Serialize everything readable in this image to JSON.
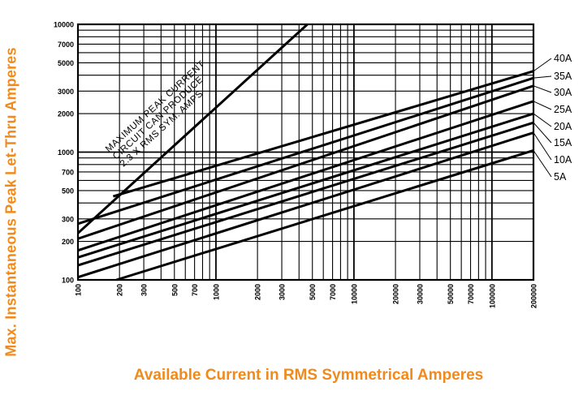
{
  "chart_data": {
    "type": "line",
    "title": "",
    "xlabel": "Available Current in RMS Symmetrical Amperes",
    "ylabel": "Max. Instantaneous Peak Let-Thru Amperes",
    "xscale": "log",
    "yscale": "log",
    "xlim": [
      100,
      200000
    ],
    "ylim": [
      100,
      10000
    ],
    "grid": true,
    "x_ticks": [
      {
        "v": 100,
        "label": "100"
      },
      {
        "v": 200,
        "label": "200"
      },
      {
        "v": 300,
        "label": "300"
      },
      {
        "v": 500,
        "label": "500"
      },
      {
        "v": 700,
        "label": "700"
      },
      {
        "v": 1000,
        "label": "1000"
      },
      {
        "v": 2000,
        "label": "2000"
      },
      {
        "v": 3000,
        "label": "3000"
      },
      {
        "v": 5000,
        "label": "5000"
      },
      {
        "v": 7000,
        "label": "7000"
      },
      {
        "v": 10000,
        "label": "10000"
      },
      {
        "v": 20000,
        "label": "20000"
      },
      {
        "v": 30000,
        "label": "30000"
      },
      {
        "v": 50000,
        "label": "50000"
      },
      {
        "v": 70000,
        "label": "70000"
      },
      {
        "v": 100000,
        "label": "100000"
      },
      {
        "v": 200000,
        "label": "200000"
      }
    ],
    "y_ticks": [
      {
        "v": 100,
        "label": "100"
      },
      {
        "v": 200,
        "label": "200"
      },
      {
        "v": 300,
        "label": "300"
      },
      {
        "v": 500,
        "label": "500"
      },
      {
        "v": 700,
        "label": "700"
      },
      {
        "v": 1000,
        "label": "1000"
      },
      {
        "v": 2000,
        "label": "2000"
      },
      {
        "v": 3000,
        "label": "3000"
      },
      {
        "v": 5000,
        "label": "5000"
      },
      {
        "v": 7000,
        "label": "7000"
      },
      {
        "v": 10000,
        "label": "10000"
      }
    ],
    "series": [
      {
        "name": "40A",
        "x": [
          180,
          200000
        ],
        "y": [
          450,
          4300
        ]
      },
      {
        "name": "35A",
        "x": [
          100,
          200000
        ],
        "y": [
          275,
          3800
        ]
      },
      {
        "name": "30A",
        "x": [
          100,
          200000
        ],
        "y": [
          210,
          3300
        ]
      },
      {
        "name": "25A",
        "x": [
          100,
          200000
        ],
        "y": [
          170,
          2500
        ]
      },
      {
        "name": "20A",
        "x": [
          100,
          200000
        ],
        "y": [
          150,
          2000
        ]
      },
      {
        "name": "15A",
        "x": [
          100,
          200000
        ],
        "y": [
          130,
          1700
        ]
      },
      {
        "name": "10A",
        "x": [
          100,
          200000
        ],
        "y": [
          105,
          1420
        ]
      },
      {
        "name": "5A",
        "x": [
          190,
          200000
        ],
        "y": [
          100,
          1030
        ]
      }
    ],
    "peak_line": {
      "x": [
        100,
        4600
      ],
      "y": [
        232,
        10000
      ]
    },
    "annotation": {
      "lines": [
        "MAXIMUM PEAK CURRENT",
        "CIRCUIT CAN PRODUCE",
        "2.3 X RMS SYM. AMPS"
      ]
    }
  }
}
